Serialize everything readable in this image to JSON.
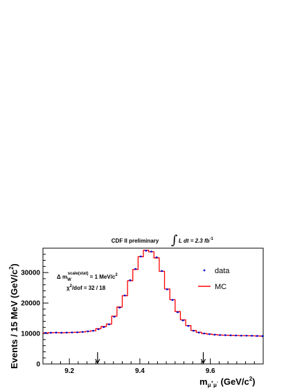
{
  "chart_data": {
    "type": "line",
    "title_left": "CDF II preliminary",
    "title_right": "L dt = 2.3 fb",
    "title_right_sup": "-1",
    "xlabel": "m",
    "xlabel_sub": "μ",
    "xlabel_sub_sup1": "+",
    "xlabel_sub2": "μ",
    "xlabel_sub_sup2": "-",
    "xlabel_units": " (GeV/c",
    "xlabel_units_sup": "2",
    "xlabel_close": ")",
    "ylabel": "Events / 15 MeV (GeV/c",
    "ylabel_sup": "2",
    "ylabel_close": ")",
    "xlim": [
      9.125,
      9.75
    ],
    "ylim": [
      0,
      38000
    ],
    "x_ticks": [
      9.2,
      9.4,
      9.6
    ],
    "x_tick_labels": [
      "9.2",
      "9.4",
      "9.6"
    ],
    "y_ticks": [
      0,
      10000,
      20000,
      30000
    ],
    "y_tick_labels": [
      "0",
      "10000",
      "20000",
      "30000"
    ],
    "annotation_line1_prefix": "Δ m",
    "annotation_line1_sub": "W",
    "annotation_line1_sup": "scale(stat)",
    "annotation_line1_suffix": " = 1 MeV/c",
    "annotation_line1_unit_sup": "2",
    "annotation_line2_prefix": "χ",
    "annotation_line2_sup": "2",
    "annotation_line2_suffix": "/dof = 32 / 18",
    "arrows_x": [
      9.28,
      9.58
    ],
    "legend_position": "top-right",
    "bin_width": 0.015,
    "bin_edges_start": 9.125,
    "series": [
      {
        "name": "data",
        "kind": "points",
        "color": "#0000cc",
        "values": [
          10200,
          10250,
          10300,
          10250,
          10300,
          10350,
          10400,
          10500,
          10700,
          10900,
          11400,
          12100,
          13000,
          15500,
          18500,
          22500,
          27500,
          31200,
          35300,
          37200,
          36900,
          35000,
          30500,
          24500,
          21000,
          17000,
          14300,
          12500,
          10900,
          10300,
          10000,
          9800,
          9600,
          9500,
          9450,
          9400,
          9350,
          9300,
          9300,
          9250,
          9200,
          9150
        ]
      },
      {
        "name": "MC",
        "kind": "histogram",
        "color": "#ff0000",
        "values": [
          10200,
          10250,
          10300,
          10250,
          10300,
          10350,
          10400,
          10500,
          10700,
          10900,
          11600,
          12300,
          13100,
          15700,
          18700,
          22400,
          27300,
          31000,
          35200,
          37300,
          36800,
          34800,
          30400,
          24600,
          21100,
          17200,
          14500,
          12600,
          11000,
          10400,
          10000,
          9800,
          9650,
          9500,
          9450,
          9400,
          9350,
          9300,
          9280,
          9250,
          9200,
          9150
        ]
      }
    ]
  }
}
